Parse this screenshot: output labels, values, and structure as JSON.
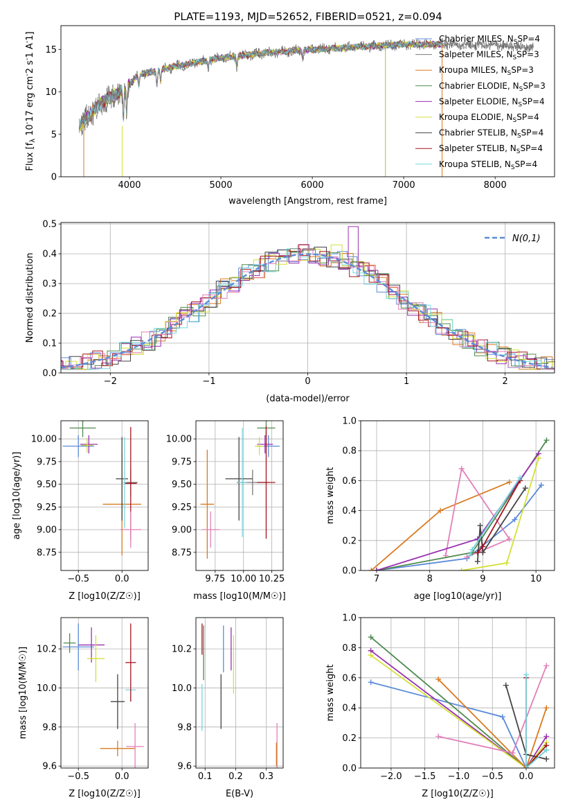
{
  "chart_data": [
    {
      "type": "line",
      "title": "PLATE=1193, MJD=52652, FIBERID=0521, z=0.094",
      "xlabel": "wavelength [Angstrom, rest frame]",
      "ylabel": "Flux [f_λ 10^-17 erg cm^-2 s^-1 A^-1]",
      "xlim": [
        3250,
        8650
      ],
      "ylim": [
        0,
        17.8
      ],
      "xticks": [
        4000,
        5000,
        6000,
        7000,
        8000
      ],
      "yticks": [
        0,
        5,
        10,
        15
      ],
      "legend_position": "right",
      "series": [
        {
          "name": "Chabrier MILES, N_SSP=4",
          "color": "#5b8bd9"
        },
        {
          "name": "Salpeter MILES, N_SSP=3",
          "color": "#7a7a7a"
        },
        {
          "name": "Kroupa MILES, N_SSP=3",
          "color": "#d97a1f"
        },
        {
          "name": "Chabrier ELODIE, N_SSP=3",
          "color": "#4e8a4e"
        },
        {
          "name": "Salpeter ELODIE, N_SSP=4",
          "color": "#9a2fb0"
        },
        {
          "name": "Kroupa ELODIE, N_SSP=4",
          "color": "#d4e035"
        },
        {
          "name": "Chabrier STELIB, N_SSP=4",
          "color": "#444444"
        },
        {
          "name": "Salpeter STELIB, N_SSP=4",
          "color": "#a3141f"
        },
        {
          "name": "Kroupa STELIB, N_SSP=4",
          "color": "#78d6e0"
        }
      ],
      "continuum_points": [
        [
          3450,
          6.0
        ],
        [
          3700,
          8.8
        ],
        [
          3950,
          10.4
        ],
        [
          4100,
          12.0
        ],
        [
          4500,
          13.0
        ],
        [
          5000,
          14.0
        ],
        [
          5500,
          14.6
        ],
        [
          6000,
          15.0
        ],
        [
          6500,
          15.3
        ],
        [
          7000,
          15.6
        ],
        [
          7500,
          15.6
        ],
        [
          8000,
          15.5
        ],
        [
          8400,
          15.2
        ]
      ]
    },
    {
      "type": "line",
      "xlabel": "(data-model)/error",
      "ylabel": "Normed distribution",
      "xlim": [
        -2.5,
        2.5
      ],
      "ylim": [
        0,
        0.505
      ],
      "xticks": [
        -2,
        -1,
        0,
        1,
        2
      ],
      "yticks": [
        0.0,
        0.1,
        0.2,
        0.3,
        0.4,
        0.5
      ],
      "legend": "N(0,1)",
      "legend_position": "top-right",
      "gaussian_color": "#5b8bd9"
    },
    {
      "type": "scatter",
      "xlabel": "Z [log10(Z/Z☉)]",
      "ylabel": "age [log10(age/yr)]",
      "xlim": [
        -0.7,
        0.3
      ],
      "ylim": [
        8.55,
        10.2
      ],
      "xticks": [
        -0.5,
        0.0
      ],
      "yticks": [
        8.75,
        9.0,
        9.25,
        9.5,
        9.75,
        10.0
      ],
      "points": [
        {
          "x": -0.5,
          "y": 9.92,
          "xerr": 0.18,
          "yerr": 0.12,
          "color": "#5b8bd9"
        },
        {
          "x": 0.1,
          "y": 9.52,
          "xerr": 0.08,
          "yerr": 0.14,
          "color": "#7a7a7a"
        },
        {
          "x": 0.0,
          "y": 9.28,
          "xerr": 0.22,
          "yerr": 0.56,
          "color": "#d97a1f"
        },
        {
          "x": -0.45,
          "y": 10.12,
          "xerr": 0.15,
          "yerr": 0.1,
          "color": "#4e8a4e"
        },
        {
          "x": -0.38,
          "y": 9.94,
          "xerr": 0.1,
          "yerr": 0.1,
          "color": "#9a2fb0"
        },
        {
          "x": -0.4,
          "y": 9.93,
          "xerr": 0.07,
          "yerr": 0.08,
          "color": "#d4e035"
        },
        {
          "x": 0.0,
          "y": 9.56,
          "xerr": 0.07,
          "yerr": 0.46,
          "color": "#444444"
        },
        {
          "x": 0.1,
          "y": 9.51,
          "xerr": 0.07,
          "yerr": 0.62,
          "color": "#a3141f"
        },
        {
          "x": 0.03,
          "y": 9.52,
          "xerr": 0.02,
          "yerr": 0.5,
          "color": "#78d6e0"
        },
        {
          "x": 0.1,
          "y": 9.0,
          "xerr": 0.12,
          "yerr": 0.2,
          "color": "#e27fb9"
        }
      ]
    },
    {
      "type": "scatter",
      "xlabel": "mass [log10(M/M☉)]",
      "xlim": [
        9.58,
        10.35
      ],
      "ylim": [
        8.55,
        10.2
      ],
      "xticks": [
        9.75,
        10.0,
        10.25
      ],
      "yticks": [
        8.75,
        9.0,
        9.25,
        9.5,
        9.75,
        10.0
      ],
      "points": [
        {
          "x": 10.22,
          "y": 9.92,
          "xerr": 0.1,
          "yerr": 0.12,
          "color": "#5b8bd9"
        },
        {
          "x": 10.08,
          "y": 9.52,
          "xerr": 0.14,
          "yerr": 0.14,
          "color": "#7a7a7a"
        },
        {
          "x": 9.68,
          "y": 9.28,
          "xerr": 0.06,
          "yerr": 0.6,
          "color": "#d97a1f"
        },
        {
          "x": 10.2,
          "y": 10.12,
          "xerr": 0.08,
          "yerr": 0.1,
          "color": "#4e8a4e"
        },
        {
          "x": 10.19,
          "y": 9.94,
          "xerr": 0.07,
          "yerr": 0.1,
          "color": "#9a2fb0"
        },
        {
          "x": 10.14,
          "y": 9.92,
          "xerr": 0.04,
          "yerr": 0.1,
          "color": "#d4e035"
        },
        {
          "x": 9.96,
          "y": 9.56,
          "xerr": 0.12,
          "yerr": 0.46,
          "color": "#444444"
        },
        {
          "x": 10.2,
          "y": 9.52,
          "xerr": 0.08,
          "yerr": 0.62,
          "color": "#a3141f"
        },
        {
          "x": 9.99,
          "y": 9.52,
          "xerr": 0.04,
          "yerr": 0.6,
          "color": "#78d6e0"
        },
        {
          "x": 9.71,
          "y": 9.0,
          "xerr": 0.08,
          "yerr": 0.2,
          "color": "#e27fb9"
        }
      ]
    },
    {
      "type": "line",
      "xlabel": "age [log10(age/yr)]",
      "ylabel": "mass weight",
      "xlim": [
        6.7,
        10.35
      ],
      "ylim": [
        0,
        1.0
      ],
      "xticks": [
        7,
        8,
        9,
        10
      ],
      "yticks": [
        0.0,
        0.2,
        0.4,
        0.6,
        0.8,
        1.0
      ],
      "series": [
        {
          "color": "#5b8bd9",
          "x": [
            7.0,
            8.7,
            9.6,
            10.1
          ],
          "y": [
            0.0,
            0.08,
            0.34,
            0.57
          ]
        },
        {
          "color": "#d97a1f",
          "x": [
            6.9,
            8.2,
            9.5
          ],
          "y": [
            0.0,
            0.4,
            0.59
          ]
        },
        {
          "color": "#e27fb9",
          "x": [
            8.3,
            8.6,
            9.5,
            8.7
          ],
          "y": [
            0.1,
            0.68,
            0.21,
            0.09
          ]
        },
        {
          "color": "#4e8a4e",
          "x": [
            7.0,
            8.8,
            9.7,
            10.2
          ],
          "y": [
            0.0,
            0.12,
            0.6,
            0.87
          ]
        },
        {
          "color": "#9a2fb0",
          "x": [
            7.0,
            8.9,
            10.05
          ],
          "y": [
            0.0,
            0.21,
            0.78
          ]
        },
        {
          "color": "#d4e035",
          "x": [
            8.6,
            9.45,
            10.05
          ],
          "y": [
            0.0,
            0.05,
            0.75
          ]
        },
        {
          "color": "#444444",
          "x": [
            8.9,
            8.95,
            9.0,
            9.8
          ],
          "y": [
            0.06,
            0.3,
            0.12,
            0.55
          ]
        },
        {
          "color": "#a3141f",
          "x": [
            8.9,
            9.0,
            9.7
          ],
          "y": [
            0.12,
            0.16,
            0.6
          ]
        },
        {
          "color": "#78d6e0",
          "x": [
            8.75,
            8.8,
            9.7
          ],
          "y": [
            0.1,
            0.14,
            0.62
          ]
        }
      ]
    },
    {
      "type": "scatter",
      "xlabel": "Z [log10(Z/Z☉)]",
      "ylabel": "mass [log10(M/M☉)]",
      "xlim": [
        -0.7,
        0.3
      ],
      "ylim": [
        9.59,
        10.36
      ],
      "xticks": [
        -0.5,
        0.0
      ],
      "yticks": [
        9.6,
        9.8,
        10.0,
        10.2
      ],
      "points": [
        {
          "x": -0.5,
          "y": 10.21,
          "xerr": 0.18,
          "yerr": 0.12,
          "color": "#5b8bd9"
        },
        {
          "x": 0.1,
          "y": 9.99,
          "xerr": 0.06,
          "yerr": 0.06,
          "color": "#78d6e0"
        },
        {
          "x": -0.05,
          "y": 9.69,
          "xerr": 0.2,
          "yerr": 0.04,
          "color": "#d97a1f"
        },
        {
          "x": -0.6,
          "y": 10.23,
          "xerr": 0.07,
          "yerr": 0.05,
          "color": "#4e8a4e"
        },
        {
          "x": -0.35,
          "y": 10.22,
          "xerr": 0.15,
          "yerr": 0.09,
          "color": "#9a2fb0"
        },
        {
          "x": -0.3,
          "y": 10.15,
          "xerr": 0.1,
          "yerr": 0.12,
          "color": "#d4e035"
        },
        {
          "x": -0.05,
          "y": 9.93,
          "xerr": 0.08,
          "yerr": 0.14,
          "color": "#444444"
        },
        {
          "x": 0.1,
          "y": 10.13,
          "xerr": 0.06,
          "yerr": 0.2,
          "color": "#a3141f"
        },
        {
          "x": 0.15,
          "y": 9.7,
          "xerr": 0.1,
          "yerr": 0.12,
          "color": "#e27fb9"
        }
      ]
    },
    {
      "type": "scatter",
      "xlabel": "E(B-V)",
      "xlim": [
        0.07,
        0.355
      ],
      "ylim": [
        9.59,
        10.36
      ],
      "xticks": [
        0.1,
        0.2,
        0.3
      ],
      "yticks": [
        9.6,
        9.8,
        10.0,
        10.2
      ],
      "points": [
        {
          "x": 0.095,
          "y": 10.18,
          "yerr": 0.14,
          "color": "#4e8a4e"
        },
        {
          "x": 0.09,
          "y": 9.9,
          "yerr": 0.12,
          "color": "#78d6e0"
        },
        {
          "x": 0.16,
          "y": 10.2,
          "yerr": 0.12,
          "color": "#5b8bd9"
        },
        {
          "x": 0.152,
          "y": 9.93,
          "yerr": 0.14,
          "color": "#444444"
        },
        {
          "x": 0.185,
          "y": 10.2,
          "yerr": 0.11,
          "color": "#9a2fb0"
        },
        {
          "x": 0.193,
          "y": 10.12,
          "yerr": 0.15,
          "color": "#d4e035"
        },
        {
          "x": 0.09,
          "y": 10.25,
          "yerr": 0.08,
          "color": "#a3141f"
        },
        {
          "x": 0.335,
          "y": 9.7,
          "yerr": 0.12,
          "color": "#e27fb9"
        },
        {
          "x": 0.333,
          "y": 9.66,
          "yerr": 0.06,
          "color": "#d97a1f"
        }
      ]
    },
    {
      "type": "line",
      "xlabel": "Z [log10(Z/Z☉)]",
      "ylabel": "mass weight",
      "xlim": [
        -2.45,
        0.42
      ],
      "ylim": [
        0,
        1.0
      ],
      "xticks": [
        -2.0,
        -1.5,
        -1.0,
        -0.5,
        0.0
      ],
      "yticks": [
        0.0,
        0.2,
        0.4,
        0.6,
        0.8,
        1.0
      ],
      "series": [
        {
          "color": "#5b8bd9",
          "x": [
            -2.3,
            -0.35,
            0.0
          ],
          "y": [
            0.57,
            0.34,
            0.0
          ]
        },
        {
          "color": "#4e8a4e",
          "x": [
            -2.3,
            0.0,
            0.3
          ],
          "y": [
            0.87,
            0.0,
            0.12
          ]
        },
        {
          "color": "#9a2fb0",
          "x": [
            -2.3,
            0.0,
            0.3
          ],
          "y": [
            0.78,
            0.0,
            0.21
          ]
        },
        {
          "color": "#d4e035",
          "x": [
            -2.3,
            0.0,
            0.3
          ],
          "y": [
            0.75,
            0.0,
            0.17
          ]
        },
        {
          "color": "#d97a1f",
          "x": [
            -1.3,
            0.0,
            0.3
          ],
          "y": [
            0.59,
            0.0,
            0.4
          ]
        },
        {
          "color": "#e27fb9",
          "x": [
            -1.3,
            -0.2,
            0.3
          ],
          "y": [
            0.21,
            0.1,
            0.68
          ]
        },
        {
          "color": "#444444",
          "x": [
            -0.3,
            0.0,
            0.3
          ],
          "y": [
            0.55,
            0.09,
            0.06
          ]
        },
        {
          "color": "#a3141f",
          "x": [
            0.0,
            0.0,
            0.3
          ],
          "y": [
            0.6,
            0.0,
            0.15
          ]
        },
        {
          "color": "#78d6e0",
          "x": [
            0.0,
            0.0,
            0.3
          ],
          "y": [
            0.62,
            0.0,
            0.12
          ]
        }
      ]
    }
  ]
}
